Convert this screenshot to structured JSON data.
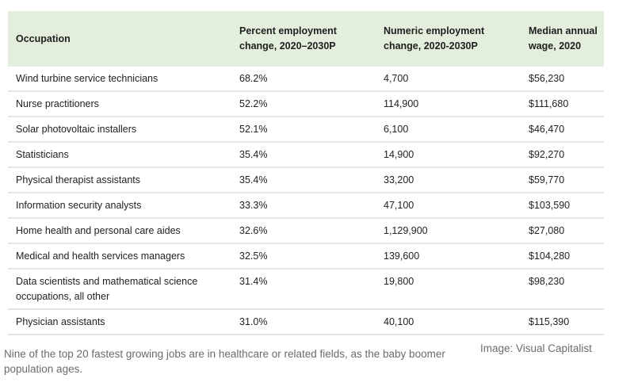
{
  "table": {
    "headers": [
      "Occupation",
      "Percent employment change, 2020–2030P",
      "Numeric employment change, 2020-2030P",
      "Median annual wage, 2020"
    ],
    "rows": [
      [
        "Wind turbine service technicians",
        "68.2%",
        "4,700",
        "$56,230"
      ],
      [
        "Nurse practitioners",
        "52.2%",
        "114,900",
        "$111,680"
      ],
      [
        "Solar photovoltaic installers",
        "52.1%",
        "6,100",
        "$46,470"
      ],
      [
        "Statisticians",
        "35.4%",
        "14,900",
        "$92,270"
      ],
      [
        "Physical therapist assistants",
        "35.4%",
        "33,200",
        "$59,770"
      ],
      [
        "Information security analysts",
        "33.3%",
        "47,100",
        "$103,590"
      ],
      [
        "Home health and personal care aides",
        "32.6%",
        "1,129,900",
        "$27,080"
      ],
      [
        "Medical and health services managers",
        "32.5%",
        "139,600",
        "$104,280"
      ],
      [
        "Data scientists and mathematical science occupations, all other",
        "31.4%",
        "19,800",
        "$98,230"
      ],
      [
        "Physician assistants",
        "31.0%",
        "40,100",
        "$115,390"
      ]
    ]
  },
  "caption": "Nine of the top 20 fastest growing jobs are in healthcare or related fields, as the baby boomer population ages.",
  "credit": "Image: Visual Capitalist",
  "colors": {
    "header_bg": "#e3efdc",
    "row_divider": "#e6e6e6",
    "caption_text": "#6b6b6b"
  }
}
